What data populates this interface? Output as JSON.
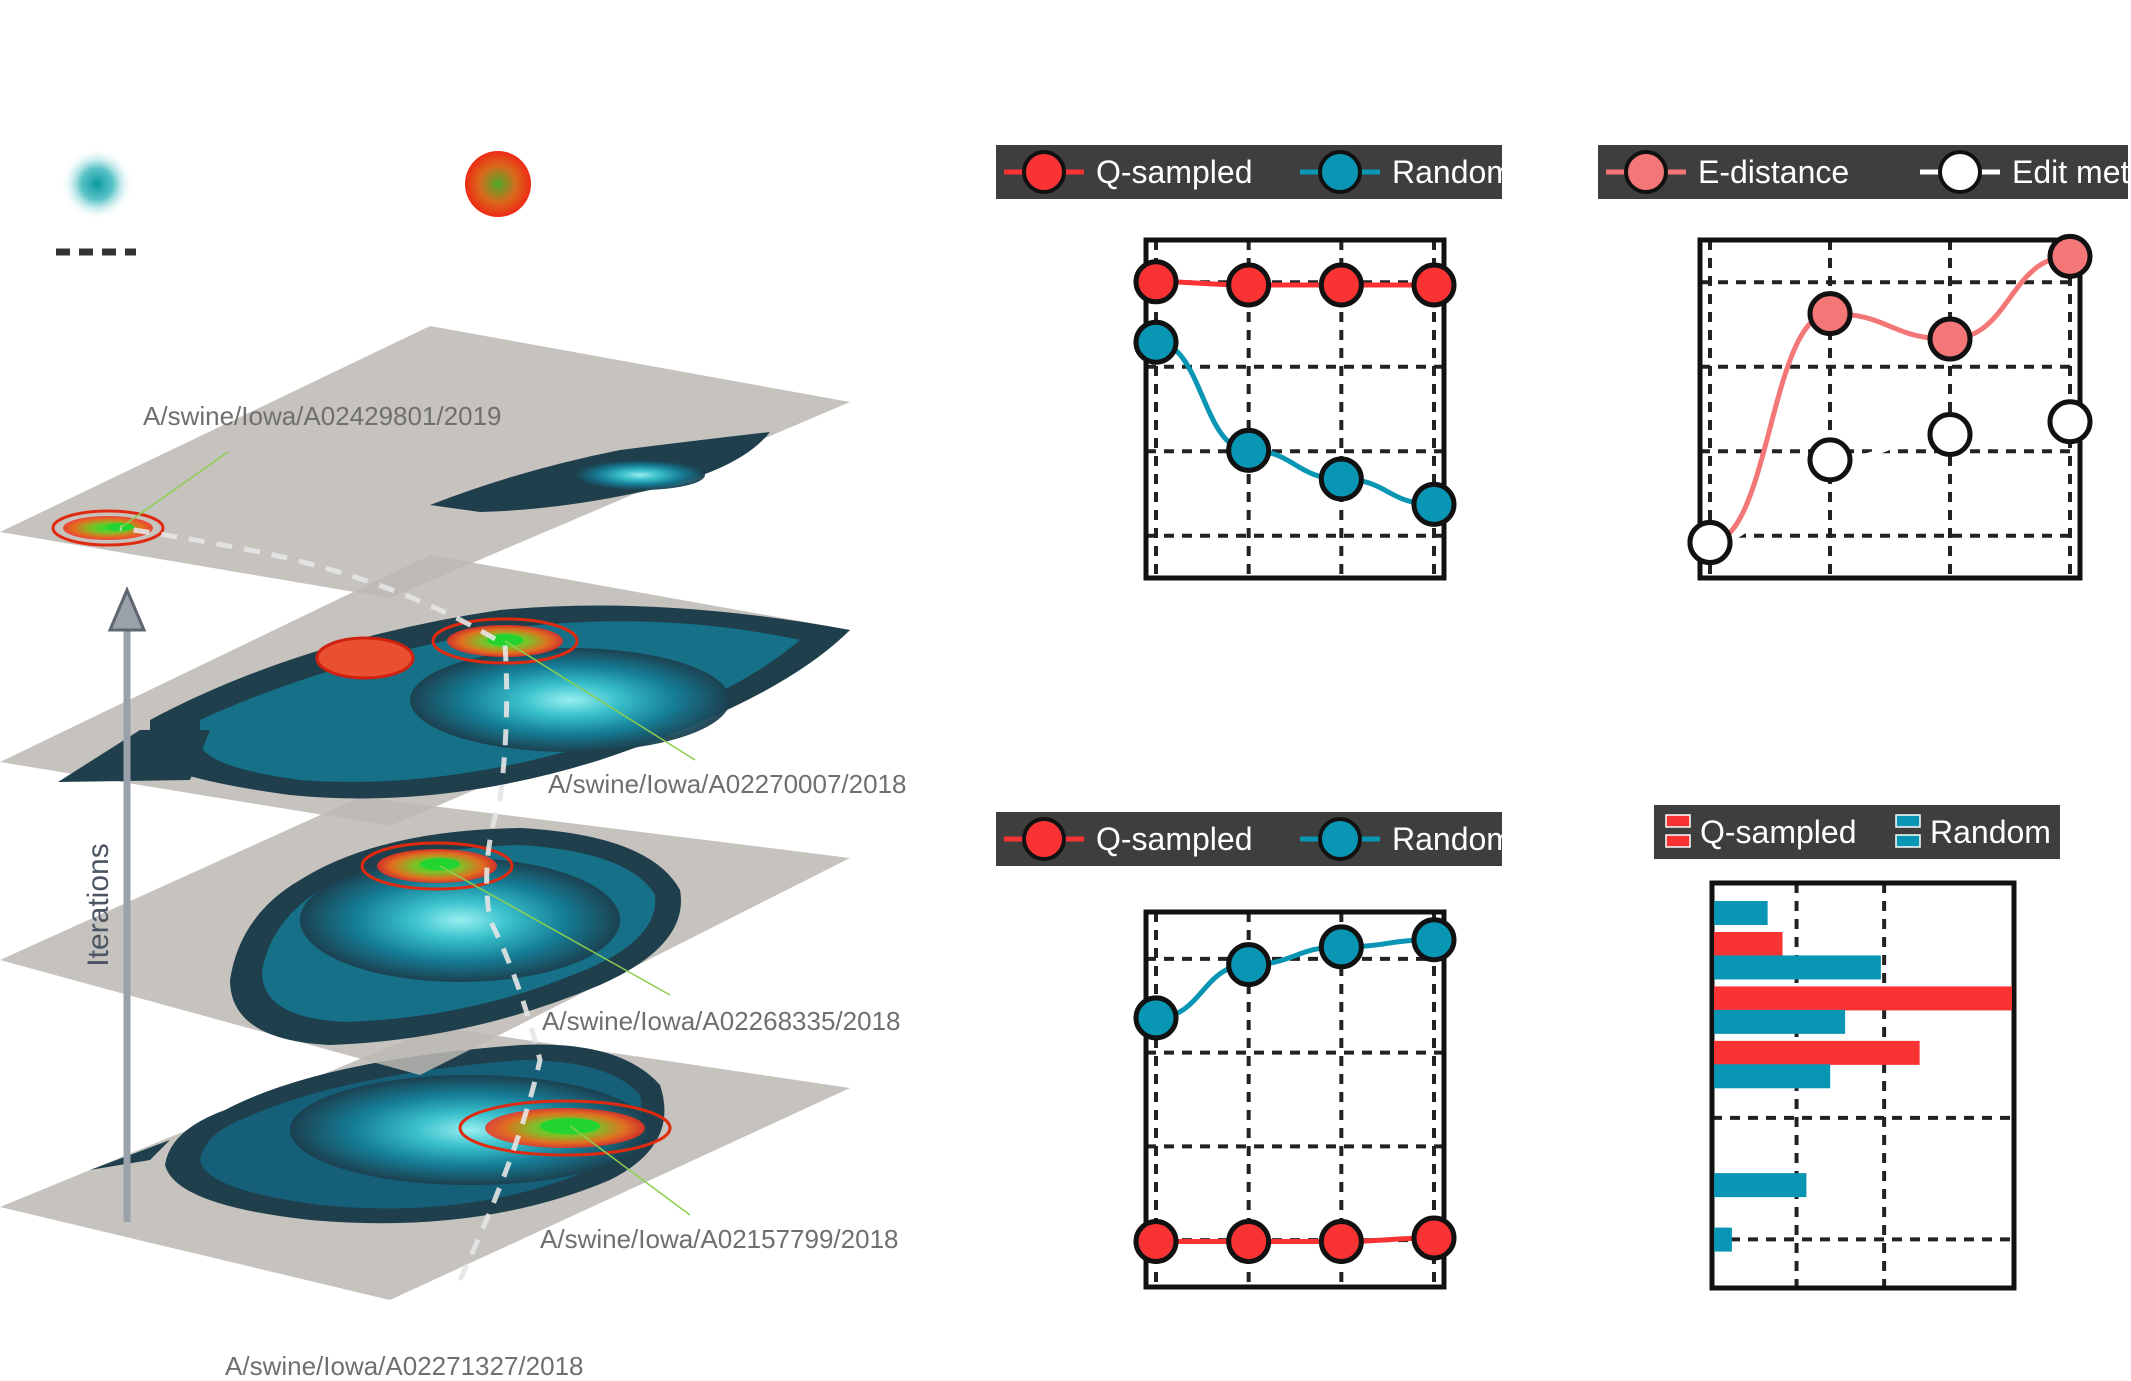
{
  "colors": {
    "q_sampled": "#f93333",
    "random": "#0896b4",
    "e_distance": "#f47777",
    "edit_metric": "#ffffff",
    "legend_bg": "#3e3e3e",
    "plane": "#b8b4b0",
    "contour_dark": "#1e3f4d",
    "contour_light": "#7ff0f0"
  },
  "icons": [
    "random-population-icon",
    "q-sampled-population-icon",
    "dashed-path-icon",
    "up-arrow-icon"
  ],
  "landscape": {
    "axis_label": "Iterations",
    "strains": [
      "A/swine/Iowa/A02429801/2019",
      "A/swine/Iowa/A02270007/2018",
      "A/swine/Iowa/A02268335/2018",
      "A/swine/Iowa/A02157799/2018",
      "A/swine/Iowa/A02271327/2018"
    ]
  },
  "chart_data": [
    {
      "type": "line",
      "legend": [
        "Q-sampled",
        "Random"
      ],
      "legend_position": "top",
      "grid": true,
      "x": [
        1,
        2,
        3,
        4
      ],
      "ylim": [
        0,
        1
      ],
      "series": [
        {
          "name": "Q-sampled",
          "values": [
            0.9,
            0.89,
            0.89,
            0.89
          ]
        },
        {
          "name": "Random",
          "values": [
            0.71,
            0.37,
            0.28,
            0.2
          ]
        }
      ]
    },
    {
      "type": "line",
      "legend": [
        "E-distance",
        "Edit metric"
      ],
      "legend_position": "top",
      "grid": true,
      "x": [
        1,
        2,
        3,
        4
      ],
      "ylim": [
        0,
        1
      ],
      "series": [
        {
          "name": "E-distance",
          "values": [
            0.08,
            0.8,
            0.72,
            0.98
          ]
        },
        {
          "name": "Edit metric",
          "values": [
            0.08,
            0.34,
            0.42,
            0.46
          ]
        }
      ]
    },
    {
      "type": "line",
      "legend": [
        "Q-sampled",
        "Random"
      ],
      "legend_position": "top",
      "grid": true,
      "x": [
        1,
        2,
        3,
        4
      ],
      "ylim": [
        0,
        1
      ],
      "series": [
        {
          "name": "Q-sampled",
          "values": [
            0.1,
            0.1,
            0.1,
            0.11
          ]
        },
        {
          "name": "Random",
          "values": [
            0.73,
            0.88,
            0.93,
            0.95
          ]
        }
      ]
    },
    {
      "type": "bar",
      "orientation": "horizontal",
      "legend": [
        "Q-sampled",
        "Random"
      ],
      "legend_position": "top",
      "grid": true,
      "categories": [
        1,
        2,
        3,
        4,
        5,
        6,
        7
      ],
      "xlim": [
        0,
        1
      ],
      "series": [
        {
          "name": "Q-sampled",
          "values": [
            0.23,
            1.0,
            0.69,
            0.0,
            0.0,
            0.0,
            0.0
          ]
        },
        {
          "name": "Random",
          "values": [
            0.18,
            0.56,
            0.44,
            0.39,
            0.0,
            0.31,
            0.06
          ]
        }
      ]
    }
  ]
}
